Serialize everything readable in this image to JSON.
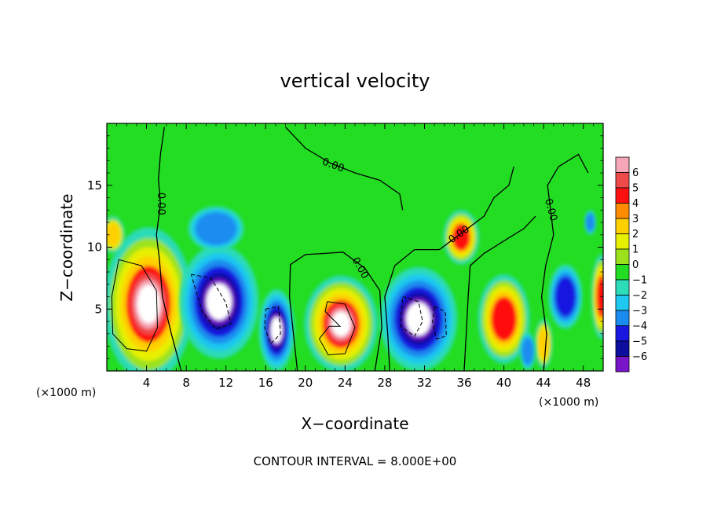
{
  "chart_data": {
    "type": "heatmap",
    "title": "vertical velocity",
    "xlabel": "X−coordinate",
    "ylabel": "Z−coordinate",
    "x_unit_left": "(×1000 m)",
    "x_unit_right": "(×1000 m)",
    "footer": "CONTOUR INTERVAL = 8.000E+00",
    "xlim": [
      0,
      50
    ],
    "ylim": [
      0,
      20
    ],
    "x_ticks": [
      4,
      8,
      12,
      16,
      20,
      24,
      28,
      32,
      36,
      40,
      44,
      48
    ],
    "x_tick_labels": [
      "4",
      "8",
      "12",
      "16",
      "20",
      "24",
      "28",
      "32",
      "36",
      "40",
      "44",
      "48"
    ],
    "y_ticks": [
      5,
      10,
      15
    ],
    "y_tick_labels": [
      "5",
      "10",
      "15"
    ],
    "colorbar": {
      "levels": [
        6,
        5,
        4,
        3,
        2,
        1,
        0,
        -1,
        -2,
        -3,
        -4,
        -5,
        -6
      ],
      "labels": [
        "6",
        "5",
        "4",
        "3",
        "2",
        "1",
        "0",
        "−1",
        "−2",
        "−3",
        "−4",
        "−5",
        "−6"
      ],
      "colors": [
        "#f6a6b6",
        "#ee4a4a",
        "#ff1010",
        "#ff8c00",
        "#ffd000",
        "#e8f000",
        "#9be21c",
        "#22dd22",
        "#2cdbb8",
        "#1ec8f0",
        "#1a8cf0",
        "#1818e0",
        "#0d0d9e",
        "#7a14c8"
      ]
    },
    "contour_labels": [
      {
        "text": "0.00",
        "x": 5.4,
        "z": 13.5,
        "rotate": 90
      },
      {
        "text": "0.00",
        "x": 22.8,
        "z": 16.6,
        "rotate": 20
      },
      {
        "text": "0.00",
        "x": 25.5,
        "z": 8.3,
        "rotate": 60
      },
      {
        "text": "0.00",
        "x": 35.5,
        "z": 11.0,
        "rotate": -35
      },
      {
        "text": "0.00",
        "x": 44.7,
        "z": 13.0,
        "rotate": 75
      }
    ],
    "features": [
      {
        "kind": "updraft",
        "x": 4.2,
        "z": 5.4,
        "rx": 4.5,
        "rz": 6.2,
        "strength": 1.0
      },
      {
        "kind": "updraft",
        "x": 23.6,
        "z": 3.8,
        "rx": 3.7,
        "rz": 3.9,
        "strength": 1.0
      },
      {
        "kind": "updraft",
        "x": 35.7,
        "z": 10.8,
        "rx": 1.8,
        "rz": 2.2,
        "strength": 0.7
      },
      {
        "kind": "updraft",
        "x": 40.0,
        "z": 4.2,
        "rx": 2.6,
        "rz": 3.6,
        "strength": 0.75
      },
      {
        "kind": "updraft",
        "x": 44.0,
        "z": 2.2,
        "rx": 0.9,
        "rz": 2.0,
        "strength": 0.55
      },
      {
        "kind": "updraft",
        "x": 49.8,
        "z": 6.0,
        "rx": 1.0,
        "rz": 3.4,
        "strength": 0.7
      },
      {
        "kind": "updraft",
        "x": 0.6,
        "z": 11.0,
        "rx": 1.2,
        "rz": 1.5,
        "strength": 0.5
      },
      {
        "kind": "downdraft",
        "x": 11.3,
        "z": 5.6,
        "rx": 4.0,
        "rz": 4.6,
        "strength": 1.0
      },
      {
        "kind": "downdraft",
        "x": 17.1,
        "z": 3.3,
        "rx": 1.8,
        "rz": 3.3,
        "strength": 0.95
      },
      {
        "kind": "downdraft",
        "x": 31.4,
        "z": 4.2,
        "rx": 3.9,
        "rz": 4.2,
        "strength": 1.0
      },
      {
        "kind": "downdraft",
        "x": 46.2,
        "z": 6.0,
        "rx": 1.7,
        "rz": 2.6,
        "strength": 0.9
      },
      {
        "kind": "downdraft",
        "x": 42.4,
        "z": 1.6,
        "rx": 0.8,
        "rz": 1.5,
        "strength": 0.5
      },
      {
        "kind": "downdraft",
        "x": 11.0,
        "z": 11.5,
        "rx": 2.8,
        "rz": 1.8,
        "strength": 0.35
      },
      {
        "kind": "downdraft",
        "x": 48.7,
        "z": 12.0,
        "rx": 0.6,
        "rz": 1.0,
        "strength": 0.35
      }
    ],
    "zero_contours": [
      [
        [
          5.8,
          19.7
        ],
        [
          5.4,
          17.5
        ],
        [
          5.2,
          15.5
        ],
        [
          5.4,
          13.5
        ],
        [
          5.0,
          11.0
        ],
        [
          5.3,
          9.0
        ],
        [
          5.6,
          6.0
        ],
        [
          6.5,
          3.0
        ],
        [
          7.5,
          0.0
        ]
      ],
      [
        [
          19.2,
          0.0
        ],
        [
          18.8,
          3.0
        ],
        [
          18.4,
          6.0
        ],
        [
          18.5,
          8.6
        ],
        [
          20.0,
          9.4
        ],
        [
          22.0,
          9.5
        ],
        [
          23.8,
          9.6
        ],
        [
          26.0,
          8.3
        ],
        [
          27.5,
          6.5
        ],
        [
          27.7,
          3.5
        ],
        [
          27.0,
          0.0
        ]
      ],
      [
        [
          18.0,
          19.7
        ],
        [
          20.0,
          18.0
        ],
        [
          22.5,
          16.8
        ],
        [
          25.0,
          16.0
        ],
        [
          27.5,
          15.4
        ],
        [
          29.5,
          14.3
        ],
        [
          29.8,
          13.0
        ]
      ],
      [
        [
          28.5,
          0.0
        ],
        [
          28.3,
          3.0
        ],
        [
          28.0,
          6.0
        ],
        [
          29.0,
          8.5
        ],
        [
          31.0,
          9.8
        ],
        [
          33.5,
          9.8
        ],
        [
          35.5,
          11.0
        ],
        [
          38.0,
          12.5
        ],
        [
          39.0,
          14.0
        ],
        [
          40.5,
          15.0
        ],
        [
          41.0,
          16.5
        ]
      ],
      [
        [
          36.0,
          0.0
        ],
        [
          36.2,
          3.0
        ],
        [
          36.4,
          6.0
        ],
        [
          36.6,
          8.5
        ],
        [
          38.0,
          9.5
        ],
        [
          40.0,
          10.5
        ],
        [
          42.0,
          11.5
        ],
        [
          43.2,
          12.5
        ]
      ],
      [
        [
          44.0,
          0.0
        ],
        [
          44.3,
          3.0
        ],
        [
          43.8,
          6.0
        ],
        [
          44.2,
          8.5
        ],
        [
          45.0,
          11.0
        ],
        [
          44.7,
          13.0
        ],
        [
          44.4,
          15.0
        ],
        [
          45.5,
          16.5
        ],
        [
          47.5,
          17.5
        ],
        [
          48.5,
          16.0
        ]
      ]
    ],
    "solid_inner_contours": [
      [
        [
          1.2,
          9.0
        ],
        [
          3.5,
          8.5
        ],
        [
          5.0,
          6.5
        ],
        [
          5.1,
          3.5
        ],
        [
          4.0,
          1.6
        ],
        [
          2.0,
          1.8
        ],
        [
          0.6,
          3.0
        ],
        [
          0.5,
          6.0
        ],
        [
          1.2,
          9.0
        ]
      ],
      [
        [
          22.2,
          5.6
        ],
        [
          24.0,
          5.4
        ],
        [
          25.0,
          3.5
        ],
        [
          24.0,
          1.4
        ],
        [
          22.3,
          1.3
        ],
        [
          21.4,
          2.6
        ],
        [
          22.4,
          3.6
        ],
        [
          23.5,
          3.6
        ],
        [
          22.0,
          4.8
        ],
        [
          22.2,
          5.6
        ]
      ]
    ],
    "dashed_inner_contours": [
      [
        [
          8.5,
          7.8
        ],
        [
          10.5,
          7.5
        ],
        [
          12.0,
          5.5
        ],
        [
          12.5,
          3.8
        ],
        [
          11.0,
          3.4
        ],
        [
          9.6,
          4.8
        ],
        [
          8.5,
          7.8
        ]
      ],
      [
        [
          16.0,
          5.0
        ],
        [
          17.3,
          5.2
        ],
        [
          17.5,
          3.0
        ],
        [
          16.5,
          2.2
        ],
        [
          15.9,
          3.5
        ],
        [
          16.0,
          5.0
        ]
      ],
      [
        [
          29.8,
          6.0
        ],
        [
          31.4,
          5.6
        ],
        [
          31.8,
          4.0
        ],
        [
          31.0,
          2.8
        ],
        [
          29.6,
          3.6
        ],
        [
          29.8,
          6.0
        ]
      ],
      [
        [
          33.0,
          5.2
        ],
        [
          34.1,
          4.8
        ],
        [
          34.2,
          2.8
        ],
        [
          33.2,
          2.6
        ],
        [
          32.8,
          4.0
        ],
        [
          33.0,
          5.2
        ]
      ]
    ]
  }
}
